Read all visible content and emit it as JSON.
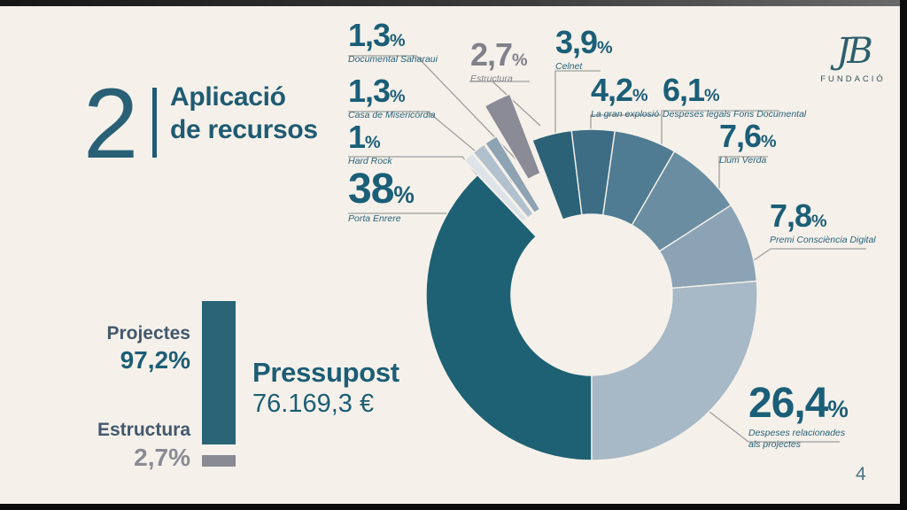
{
  "slide": {
    "section_number": "2",
    "title_line1": "Aplicació",
    "title_line2": "de recursos",
    "page_number": "4"
  },
  "logo": {
    "monogram": "JB",
    "org": "FUNDACIÓ"
  },
  "percent_sign": "%",
  "summary": {
    "budget_label": "Pressupost",
    "budget_value": "76.169,3 €",
    "legend": [
      {
        "label": "Projectes",
        "pct": "97,2%",
        "color": "#2a6476"
      },
      {
        "label": "Estructura",
        "pct": "2,7%",
        "color": "#8a8a94"
      }
    ]
  },
  "colors": {
    "background": "#f5f1ea",
    "accent_teal": "#1b5e78",
    "gray": "#8a8a94",
    "leader_line": "#9e9e9e"
  },
  "chart_data": {
    "type": "pie",
    "subtype": "donut",
    "units": "percent",
    "total_label": "Pressupost 76.169,3 €",
    "start_angle_deg": 180,
    "clockwise": true,
    "legend_position": "callouts",
    "segments": [
      {
        "name": "Porta Enrere",
        "value": 38,
        "pct_label": "38",
        "color": "#1e6174",
        "explode": 0
      },
      {
        "name": "Hard Rock",
        "value": 1,
        "pct_label": "1",
        "color": "#dde3e8",
        "explode": 22
      },
      {
        "name": "Casa de Misericòrdia",
        "value": 1.3,
        "pct_label": "1,3",
        "color": "#b0c0cd",
        "explode": 22
      },
      {
        "name": "Documental Saharaui",
        "value": 1.3,
        "pct_label": "1,3",
        "color": "#8da2b3",
        "explode": 22
      },
      {
        "name": "Estructura",
        "value": 2.7,
        "pct_label": "2,7",
        "color": "#8b8b97",
        "explode": 58
      },
      {
        "name": "Celnet",
        "value": 3.9,
        "pct_label": "3,9",
        "color": "#2c6277",
        "explode": 0
      },
      {
        "name": "La gran explosió",
        "value": 4.2,
        "pct_label": "4,2",
        "color": "#3d6d84",
        "explode": 0
      },
      {
        "name": "Despeses legals Fons Documental",
        "value": 6.1,
        "pct_label": "6,1",
        "color": "#4f7b93",
        "explode": 0
      },
      {
        "name": "Llum Verda",
        "value": 7.6,
        "pct_label": "7,6",
        "color": "#6a8da1",
        "explode": 0
      },
      {
        "name": "Premi Consciència Digital",
        "value": 7.8,
        "pct_label": "7,8",
        "color": "#8ba3b5",
        "explode": 0
      },
      {
        "name": "Despeses relacionades als projectes",
        "value": 26.4,
        "pct_label": "26,4",
        "color": "#a7b8c6",
        "explode": 0
      }
    ]
  }
}
